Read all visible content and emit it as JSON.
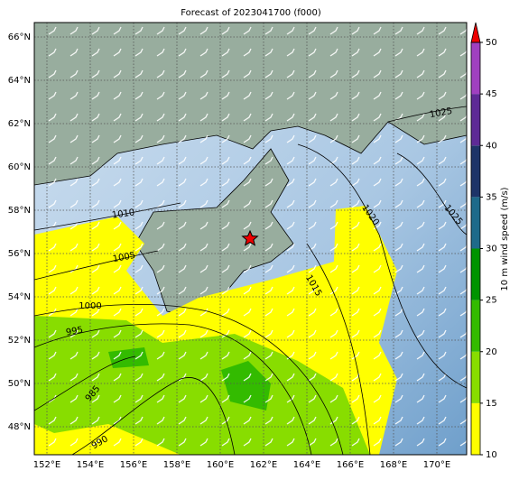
{
  "map": {
    "title": "Forecast of 2023041700 (f000)",
    "lon_labels": [
      "152°E",
      "154°E",
      "156°E",
      "158°E",
      "160°E",
      "162°E",
      "164°E",
      "166°E",
      "168°E",
      "170°E"
    ],
    "lat_labels": [
      "66°N",
      "64°N",
      "62°N",
      "60°N",
      "58°N",
      "56°N",
      "54°N",
      "52°N",
      "50°N",
      "48°N"
    ],
    "isobar_labels": [
      "1025",
      "1020",
      "1025",
      "1015",
      "1010",
      "1005",
      "1000",
      "995",
      "985",
      "990"
    ],
    "colorbar": {
      "label": "10 m wind speed (m/s)",
      "lim": [
        10,
        50
      ],
      "ticks": [
        10,
        15,
        20,
        25,
        30,
        35,
        40,
        45,
        50
      ],
      "colors": [
        "#ffff00",
        "#88dd00",
        "#33bb00",
        "#009400",
        "#1e6a8a",
        "#1e3468",
        "#5e2a96",
        "#a040c0"
      ],
      "extend_color": "#ee0000"
    }
  }
}
